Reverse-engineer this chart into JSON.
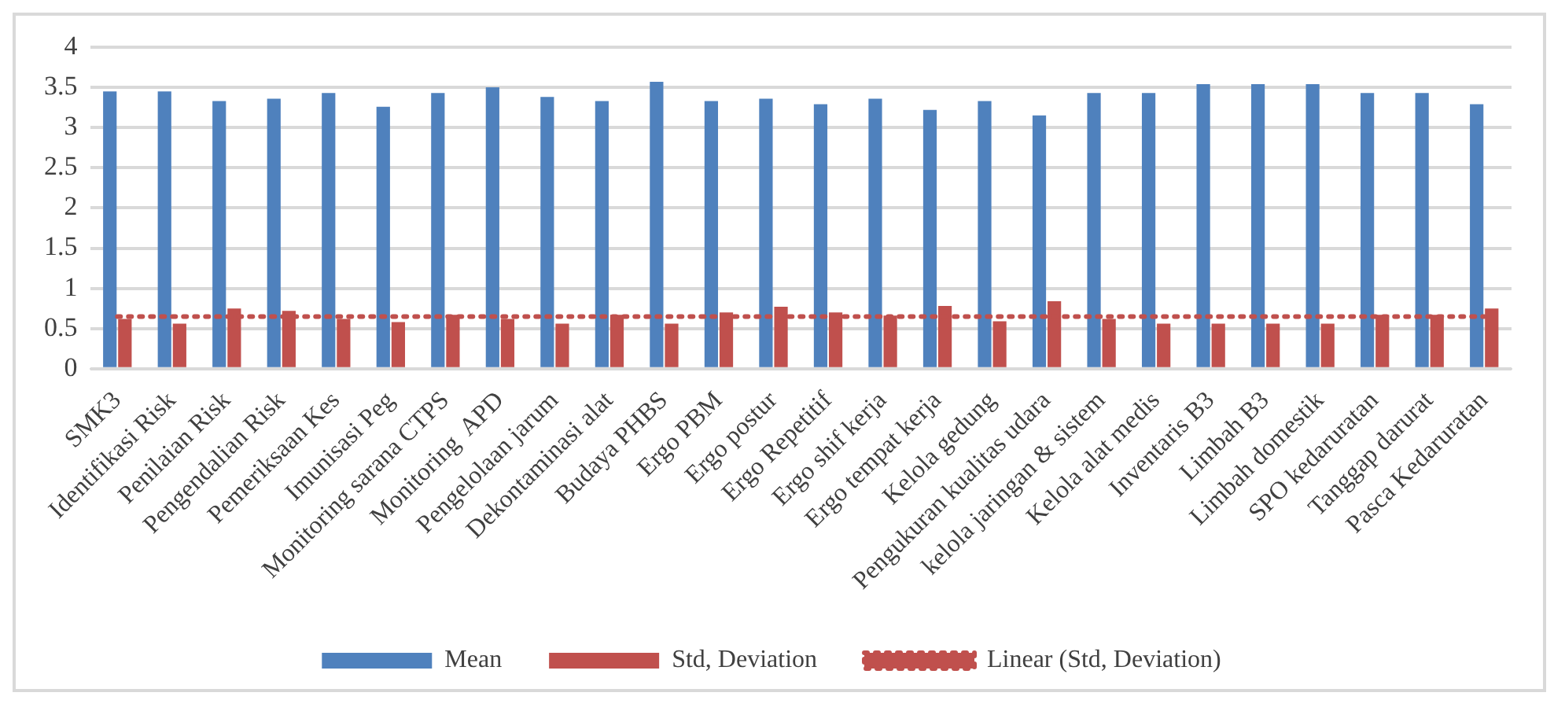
{
  "chart_data": {
    "type": "bar",
    "categories": [
      "SMK3",
      "Identifikasi Risk",
      "Penilaian Risk",
      "Pengendalian Risk",
      "Pemeriksaan Kes",
      "Imunisasi Peg",
      "Monitoring sarana CTPS",
      "Monitoring  APD",
      "Pengelolaan jarum",
      "Dekontaminasi alat",
      "Budaya PHBS",
      "Ergo PBM",
      "Ergo postur",
      "Ergo Repetitif",
      "Ergo shif kerja",
      "Ergo tempat kerja",
      "Kelola gedung",
      "Pengukuran kualitas udara",
      "kelola jaringan & sistem",
      "Kelola alat medis",
      "Inventaris B3",
      "Limbah B3",
      "Limbah domestik",
      "SPO kedaruratan",
      "Tanggap darurat",
      "Pasca Kedaruratan"
    ],
    "series": [
      {
        "name": "Mean",
        "color": "#4f81bd",
        "values": [
          3.45,
          3.45,
          3.33,
          3.36,
          3.43,
          3.26,
          3.43,
          3.5,
          3.38,
          3.33,
          3.57,
          3.33,
          3.36,
          3.29,
          3.36,
          3.22,
          3.33,
          3.15,
          3.43,
          3.43,
          3.54,
          3.54,
          3.54,
          3.43,
          3.43,
          3.29
        ]
      },
      {
        "name": "Std, Deviation",
        "color": "#c0504d",
        "values": [
          0.62,
          0.56,
          0.75,
          0.72,
          0.62,
          0.58,
          0.67,
          0.62,
          0.56,
          0.67,
          0.56,
          0.7,
          0.77,
          0.7,
          0.66,
          0.78,
          0.59,
          0.84,
          0.62,
          0.56,
          0.56,
          0.56,
          0.56,
          0.67,
          0.67,
          0.75
        ]
      },
      {
        "name": "Linear (Std, Deviation)",
        "type": "line",
        "color": "#c0504d",
        "line_style": "dotted",
        "marker": "none",
        "values": [
          0.65,
          0.65,
          0.65,
          0.65,
          0.65,
          0.65,
          0.65,
          0.65,
          0.65,
          0.65,
          0.65,
          0.65,
          0.65,
          0.65,
          0.65,
          0.65,
          0.65,
          0.65,
          0.65,
          0.65,
          0.65,
          0.65,
          0.65,
          0.65,
          0.65,
          0.65
        ]
      }
    ],
    "ylim": [
      0,
      4
    ],
    "yticks": [
      0,
      0.5,
      1,
      1.5,
      2,
      2.5,
      3,
      3.5,
      4
    ],
    "grid": "y",
    "legend": "bottom"
  }
}
